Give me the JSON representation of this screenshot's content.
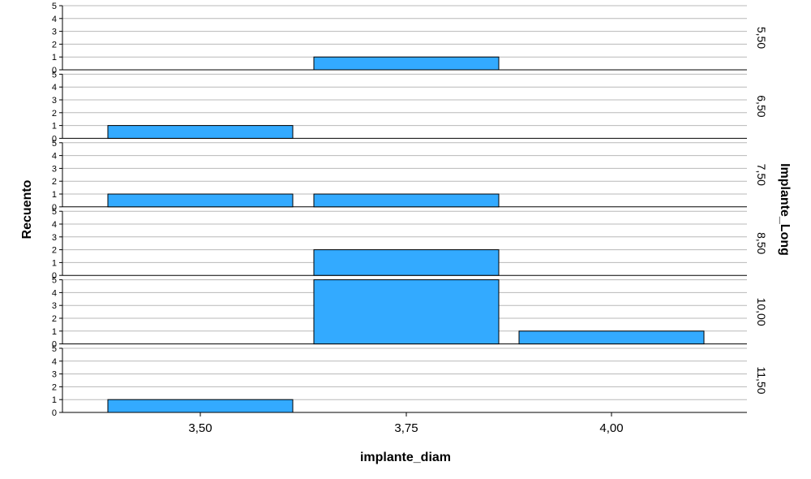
{
  "chart_data": {
    "type": "bar",
    "xlabel": "implante_diam",
    "ylabel": "Recuento",
    "facet_label": "Implante_Long",
    "categories": [
      "3,50",
      "3,75",
      "4,00"
    ],
    "ylim": [
      0,
      5
    ],
    "yticks": [
      "0",
      "1",
      "2",
      "3",
      "4",
      "5"
    ],
    "panels": [
      {
        "label": "5,50",
        "values": [
          0,
          1,
          0
        ]
      },
      {
        "label": "6,50",
        "values": [
          1,
          0,
          0
        ]
      },
      {
        "label": "7,50",
        "values": [
          1,
          1,
          0
        ]
      },
      {
        "label": "8,50",
        "values": [
          0,
          2,
          0
        ]
      },
      {
        "label": "10,00",
        "values": [
          0,
          5,
          1
        ]
      },
      {
        "label": "11,50",
        "values": [
          1,
          0,
          0
        ]
      }
    ],
    "grid": true,
    "bar_color": "#33aaff",
    "bar_edge_color": "#000000"
  }
}
